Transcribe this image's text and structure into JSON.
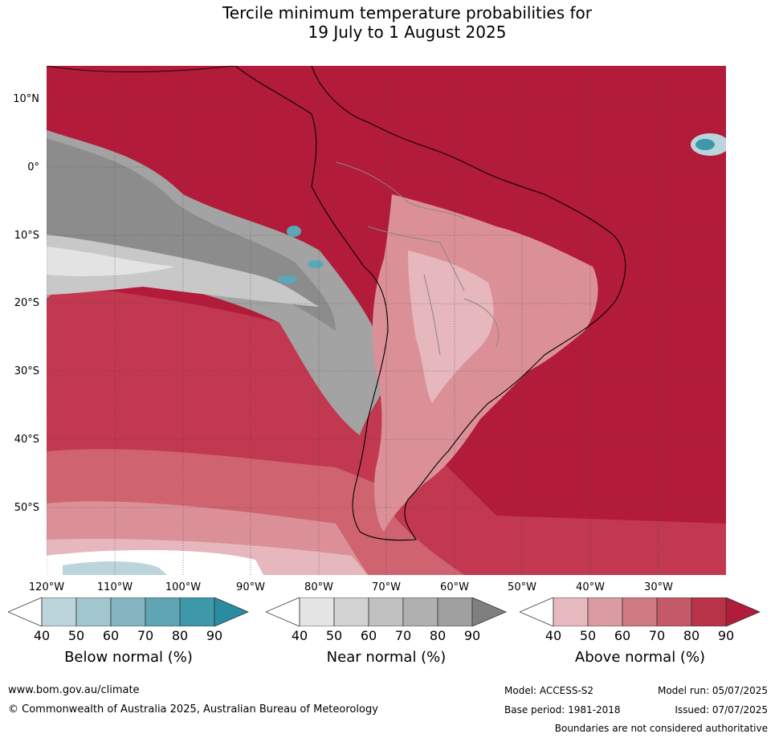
{
  "title": {
    "line1": "Tercile minimum temperature probabilities for",
    "line2": "19 July to 1 August 2025"
  },
  "map": {
    "region": "South America and surrounding oceans",
    "lat_labels": [
      "10°N",
      "0°",
      "10°S",
      "20°S",
      "30°S",
      "40°S",
      "50°S"
    ],
    "lon_labels": [
      "120°W",
      "110°W",
      "100°W",
      "90°W",
      "80°W",
      "70°W",
      "60°W",
      "50°W",
      "40°W",
      "30°W"
    ],
    "colors": {
      "above_90": "#b31b3a",
      "above_80": "#c23850",
      "above_70": "#cf6470",
      "above_60": "#db9098",
      "above_50": "#e6b7bc",
      "near_70": "#a3a3a3",
      "near_50": "#c8c8c8",
      "near_40": "#e3e3e3",
      "below_70": "#5aa8b8",
      "below_50": "#a8c9d1",
      "coast": "#000000",
      "borders": "#888888"
    }
  },
  "legends": {
    "below": {
      "title": "Below normal (%)",
      "ticks": [
        "40",
        "50",
        "60",
        "70",
        "80",
        "90"
      ],
      "colors": [
        "#ffffff",
        "#bcd4db",
        "#a2c6ce",
        "#84b6c1",
        "#5fa5b4",
        "#3d98aa",
        "#2a8ca1"
      ]
    },
    "near": {
      "title": "Near normal (%)",
      "ticks": [
        "40",
        "50",
        "60",
        "70",
        "80",
        "90"
      ],
      "colors": [
        "#ffffff",
        "#e5e5e5",
        "#d2d2d2",
        "#c0c0c0",
        "#b0b0b0",
        "#a0a0a0",
        "#7f7f7f"
      ]
    },
    "above": {
      "title": "Above normal (%)",
      "ticks": [
        "40",
        "50",
        "60",
        "70",
        "80",
        "90"
      ],
      "colors": [
        "#ffffff",
        "#e6b9be",
        "#da9ba1",
        "#cf7a83",
        "#c45a67",
        "#b83248",
        "#b01c3a"
      ]
    }
  },
  "footer": {
    "url": "www.bom.gov.au/climate",
    "copyright": "© Commonwealth of Australia 2025, Australian Bureau of Meteorology",
    "model": "Model: ACCESS-S2",
    "base_period": "Base period: 1981-2018",
    "model_run": "Model run: 05/07/2025",
    "issued": "Issued: 07/07/2025",
    "boundaries": "Boundaries are not considered authoritative"
  }
}
